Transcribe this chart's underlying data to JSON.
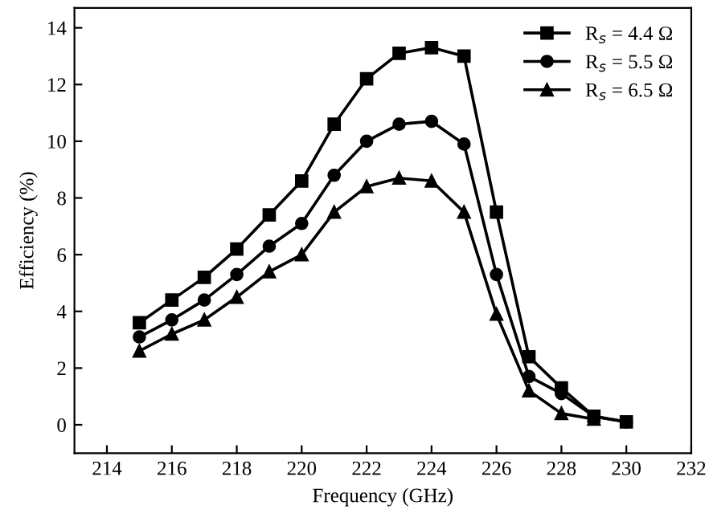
{
  "chart_data": {
    "type": "line",
    "xlabel": "Frequency (GHz)",
    "ylabel": "Efficiency (%)",
    "x": [
      215,
      216,
      217,
      218,
      219,
      220,
      221,
      222,
      223,
      224,
      225,
      226,
      227,
      228,
      229,
      230
    ],
    "series": [
      {
        "name": "R$_{s}$ = 4.4 Ω",
        "color": "#000000",
        "marker": "square",
        "values": [
          3.6,
          4.4,
          5.2,
          6.2,
          7.4,
          8.6,
          10.6,
          12.2,
          13.1,
          13.3,
          13.0,
          7.5,
          2.4,
          1.3,
          0.3,
          0.1
        ]
      },
      {
        "name": "R$_{s}$ = 5.5 Ω",
        "color": "#000000",
        "marker": "circle",
        "values": [
          3.1,
          3.7,
          4.4,
          5.3,
          6.3,
          7.1,
          8.8,
          10.0,
          10.6,
          10.7,
          9.9,
          5.3,
          1.7,
          1.1,
          0.3,
          0.1
        ]
      },
      {
        "name": "R$_{s}$ = 6.5 Ω",
        "color": "#000000",
        "marker": "triangle",
        "values": [
          2.6,
          3.2,
          3.7,
          4.5,
          5.4,
          6.0,
          7.5,
          8.4,
          8.7,
          8.6,
          7.5,
          3.9,
          1.2,
          0.4,
          0.2,
          null
        ]
      }
    ],
    "xlim": [
      213,
      232
    ],
    "xticks": [
      214,
      216,
      218,
      220,
      222,
      224,
      226,
      228,
      230,
      232
    ],
    "ylim": [
      -1,
      14.7
    ],
    "yticks": [
      0,
      2,
      4,
      6,
      8,
      10,
      12,
      14
    ],
    "legend": "top right",
    "grid": false,
    "line_style": "solid"
  }
}
